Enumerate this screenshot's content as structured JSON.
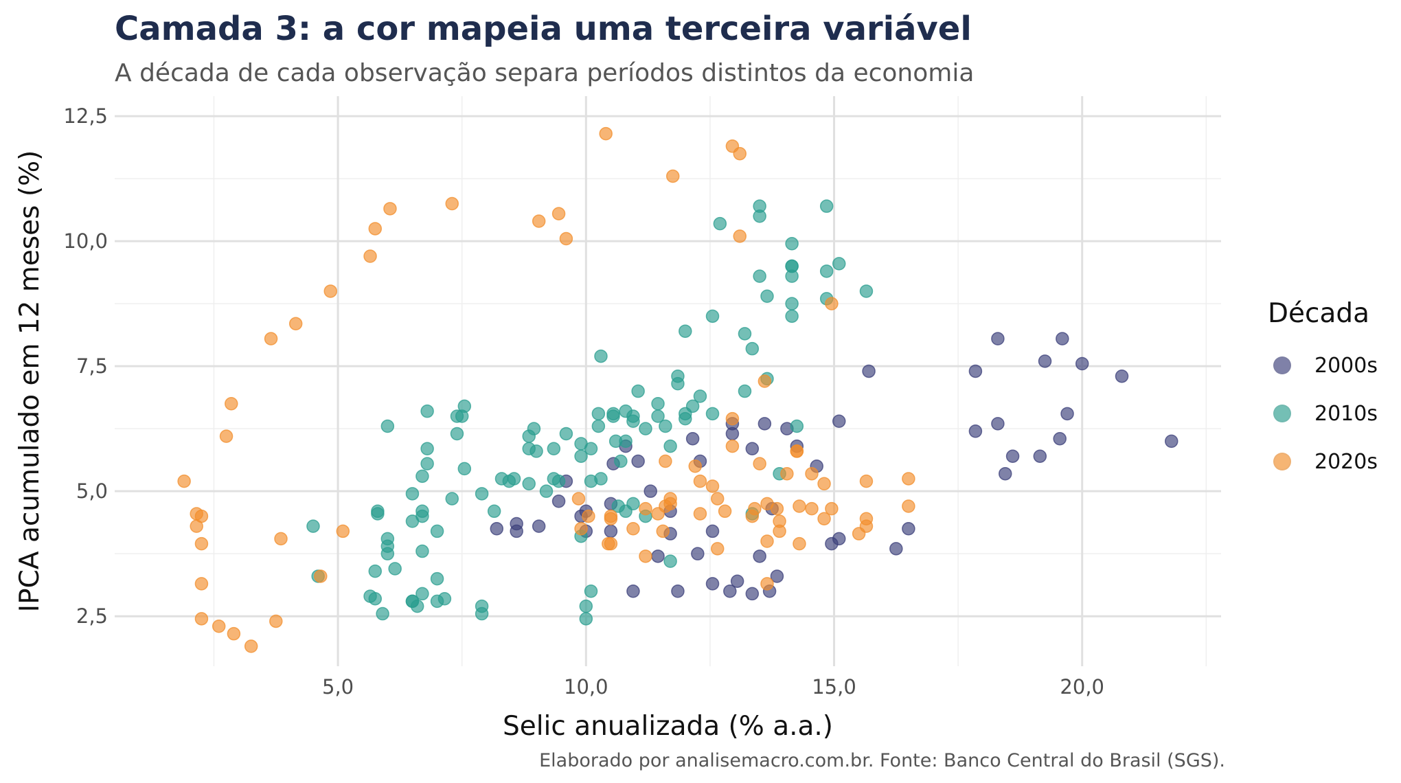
{
  "title": "Camada 3: a cor mapeia uma terceira variável",
  "subtitle": "A década de cada observação separa períodos distintos da economia",
  "caption": "Elaborado por analisemacro.com.br. Fonte: Banco Central do Brasil (SGS).",
  "chart_data": {
    "type": "scatter",
    "xlabel": "Selic anualizada (% a.a.)",
    "ylabel": "IPCA acumulado em 12 meses (%)",
    "xlim": [
      0.5,
      22.8
    ],
    "ylim": [
      1.5,
      12.9
    ],
    "x_ticks": [
      5,
      10,
      15,
      20
    ],
    "x_tick_labels": [
      "5,0",
      "10,0",
      "15,0",
      "20,0"
    ],
    "y_ticks": [
      2.5,
      5,
      7.5,
      10,
      12.5
    ],
    "y_tick_labels": [
      "2,5",
      "5,0",
      "7,5",
      "10,0",
      "12,5"
    ],
    "grid": true,
    "legend": {
      "title": "Década",
      "placement": "right"
    },
    "series": [
      {
        "name": "2000s",
        "color": "#3b3f7a",
        "points": [
          [
            21.8,
            6.0
          ],
          [
            20.8,
            7.3
          ],
          [
            20.0,
            7.55
          ],
          [
            19.7,
            6.55
          ],
          [
            19.6,
            8.05
          ],
          [
            19.55,
            6.05
          ],
          [
            19.25,
            7.6
          ],
          [
            19.15,
            5.7
          ],
          [
            18.6,
            5.7
          ],
          [
            18.45,
            5.35
          ],
          [
            18.3,
            8.05
          ],
          [
            18.3,
            6.35
          ],
          [
            17.85,
            7.4
          ],
          [
            17.85,
            6.2
          ],
          [
            16.5,
            4.25
          ],
          [
            16.25,
            3.85
          ],
          [
            15.7,
            7.4
          ],
          [
            15.1,
            6.4
          ],
          [
            15.1,
            4.05
          ],
          [
            14.95,
            3.95
          ],
          [
            14.65,
            5.5
          ],
          [
            14.25,
            5.9
          ],
          [
            14.05,
            6.25
          ],
          [
            13.85,
            3.3
          ],
          [
            13.75,
            4.65
          ],
          [
            13.7,
            3.0
          ],
          [
            13.6,
            6.35
          ],
          [
            13.5,
            3.7
          ],
          [
            13.35,
            5.85
          ],
          [
            13.35,
            2.95
          ],
          [
            13.05,
            3.2
          ],
          [
            12.95,
            6.15
          ],
          [
            12.95,
            6.35
          ],
          [
            12.9,
            3.0
          ],
          [
            12.55,
            3.15
          ],
          [
            12.55,
            4.2
          ],
          [
            12.3,
            5.6
          ],
          [
            12.25,
            3.75
          ],
          [
            12.15,
            6.05
          ],
          [
            11.85,
            3.0
          ],
          [
            11.7,
            4.6
          ],
          [
            11.7,
            4.15
          ],
          [
            11.45,
            3.7
          ],
          [
            11.3,
            5.0
          ],
          [
            11.05,
            5.6
          ],
          [
            10.95,
            3.0
          ],
          [
            10.8,
            5.9
          ],
          [
            10.55,
            5.55
          ],
          [
            10.5,
            4.75
          ],
          [
            10.5,
            4.2
          ],
          [
            10.0,
            4.2
          ],
          [
            10.0,
            4.6
          ],
          [
            9.9,
            4.5
          ],
          [
            9.6,
            5.2
          ],
          [
            9.45,
            4.8
          ],
          [
            9.05,
            4.3
          ],
          [
            8.6,
            4.35
          ],
          [
            8.6,
            4.2
          ],
          [
            8.2,
            4.25
          ]
        ]
      },
      {
        "name": "2010s",
        "color": "#2a9d8f",
        "points": [
          [
            4.5,
            4.3
          ],
          [
            4.6,
            3.3
          ],
          [
            5.65,
            2.9
          ],
          [
            5.75,
            2.85
          ],
          [
            5.75,
            3.4
          ],
          [
            5.8,
            4.55
          ],
          [
            5.8,
            4.6
          ],
          [
            5.9,
            2.55
          ],
          [
            6.0,
            3.75
          ],
          [
            6.0,
            3.9
          ],
          [
            6.0,
            4.05
          ],
          [
            6.0,
            6.3
          ],
          [
            6.15,
            3.45
          ],
          [
            6.5,
            4.95
          ],
          [
            6.5,
            4.4
          ],
          [
            6.5,
            2.8
          ],
          [
            6.5,
            2.8
          ],
          [
            6.6,
            2.7
          ],
          [
            6.7,
            3.8
          ],
          [
            6.7,
            4.5
          ],
          [
            6.7,
            4.6
          ],
          [
            6.7,
            5.3
          ],
          [
            6.7,
            2.95
          ],
          [
            6.8,
            5.55
          ],
          [
            6.8,
            5.85
          ],
          [
            6.8,
            6.6
          ],
          [
            7.0,
            3.25
          ],
          [
            7.0,
            2.8
          ],
          [
            7.0,
            4.2
          ],
          [
            7.15,
            2.85
          ],
          [
            7.3,
            4.85
          ],
          [
            7.4,
            6.15
          ],
          [
            7.4,
            6.5
          ],
          [
            7.5,
            6.5
          ],
          [
            7.55,
            5.45
          ],
          [
            7.55,
            6.7
          ],
          [
            7.9,
            2.55
          ],
          [
            7.9,
            2.7
          ],
          [
            7.9,
            4.95
          ],
          [
            8.15,
            4.6
          ],
          [
            8.3,
            5.25
          ],
          [
            8.45,
            5.2
          ],
          [
            8.55,
            5.25
          ],
          [
            8.85,
            6.1
          ],
          [
            8.85,
            5.15
          ],
          [
            8.85,
            5.85
          ],
          [
            8.95,
            6.25
          ],
          [
            9.0,
            5.8
          ],
          [
            9.2,
            5.0
          ],
          [
            9.35,
            5.85
          ],
          [
            9.35,
            5.25
          ],
          [
            9.45,
            5.2
          ],
          [
            9.6,
            6.15
          ],
          [
            9.9,
            5.95
          ],
          [
            9.9,
            5.7
          ],
          [
            9.9,
            4.1
          ],
          [
            10.0,
            2.45
          ],
          [
            10.0,
            2.7
          ],
          [
            10.1,
            3.0
          ],
          [
            10.1,
            5.85
          ],
          [
            10.1,
            5.2
          ],
          [
            10.25,
            6.3
          ],
          [
            10.25,
            6.55
          ],
          [
            10.3,
            7.7
          ],
          [
            10.3,
            5.25
          ],
          [
            10.55,
            6.55
          ],
          [
            10.55,
            6.5
          ],
          [
            10.6,
            6.0
          ],
          [
            10.65,
            4.7
          ],
          [
            10.7,
            5.6
          ],
          [
            10.8,
            6.6
          ],
          [
            10.8,
            6.0
          ],
          [
            10.8,
            4.6
          ],
          [
            10.95,
            6.4
          ],
          [
            10.95,
            6.5
          ],
          [
            10.95,
            4.75
          ],
          [
            11.05,
            7.0
          ],
          [
            11.2,
            4.5
          ],
          [
            11.2,
            6.25
          ],
          [
            11.45,
            6.75
          ],
          [
            11.45,
            6.5
          ],
          [
            11.6,
            6.3
          ],
          [
            11.7,
            5.9
          ],
          [
            11.7,
            3.6
          ],
          [
            11.85,
            7.15
          ],
          [
            11.85,
            7.3
          ],
          [
            12.0,
            6.55
          ],
          [
            12.0,
            6.45
          ],
          [
            12.0,
            8.2
          ],
          [
            12.15,
            6.7
          ],
          [
            12.3,
            6.9
          ],
          [
            12.55,
            6.55
          ],
          [
            12.55,
            8.5
          ],
          [
            12.7,
            10.35
          ],
          [
            13.2,
            8.15
          ],
          [
            13.2,
            7.0
          ],
          [
            13.35,
            7.85
          ],
          [
            13.35,
            4.55
          ],
          [
            13.5,
            9.3
          ],
          [
            13.5,
            10.5
          ],
          [
            13.5,
            10.7
          ],
          [
            13.65,
            7.25
          ],
          [
            13.65,
            8.9
          ],
          [
            13.9,
            5.35
          ],
          [
            14.15,
            9.95
          ],
          [
            14.15,
            9.5
          ],
          [
            14.15,
            9.5
          ],
          [
            14.15,
            8.5
          ],
          [
            14.15,
            9.3
          ],
          [
            14.15,
            8.75
          ],
          [
            14.25,
            6.3
          ],
          [
            14.85,
            10.7
          ],
          [
            14.85,
            9.4
          ],
          [
            14.85,
            8.85
          ],
          [
            15.1,
            9.55
          ],
          [
            15.65,
            9.0
          ]
        ]
      },
      {
        "name": "2020s",
        "color": "#f28e2b",
        "points": [
          [
            1.9,
            5.2
          ],
          [
            2.15,
            4.55
          ],
          [
            2.15,
            4.3
          ],
          [
            2.25,
            4.5
          ],
          [
            2.25,
            3.95
          ],
          [
            2.25,
            3.15
          ],
          [
            2.25,
            2.45
          ],
          [
            2.6,
            2.3
          ],
          [
            2.75,
            6.1
          ],
          [
            2.85,
            6.75
          ],
          [
            2.9,
            2.15
          ],
          [
            3.25,
            1.9
          ],
          [
            3.65,
            8.05
          ],
          [
            3.75,
            2.4
          ],
          [
            3.85,
            4.05
          ],
          [
            4.15,
            8.35
          ],
          [
            4.65,
            3.3
          ],
          [
            4.85,
            9.0
          ],
          [
            5.1,
            4.2
          ],
          [
            5.65,
            9.7
          ],
          [
            5.75,
            10.25
          ],
          [
            6.05,
            10.65
          ],
          [
            7.3,
            10.75
          ],
          [
            9.05,
            10.4
          ],
          [
            9.45,
            10.55
          ],
          [
            9.6,
            10.05
          ],
          [
            9.85,
            4.85
          ],
          [
            9.9,
            4.25
          ],
          [
            10.05,
            4.5
          ],
          [
            10.4,
            12.15
          ],
          [
            10.45,
            3.95
          ],
          [
            10.5,
            4.45
          ],
          [
            10.5,
            3.95
          ],
          [
            10.5,
            4.5
          ],
          [
            10.95,
            4.25
          ],
          [
            11.2,
            3.7
          ],
          [
            11.2,
            4.65
          ],
          [
            11.45,
            4.55
          ],
          [
            11.55,
            4.2
          ],
          [
            11.6,
            5.6
          ],
          [
            11.6,
            4.7
          ],
          [
            11.7,
            4.85
          ],
          [
            11.7,
            4.75
          ],
          [
            11.75,
            11.3
          ],
          [
            12.2,
            5.5
          ],
          [
            12.3,
            5.2
          ],
          [
            12.3,
            4.55
          ],
          [
            12.55,
            5.1
          ],
          [
            12.65,
            4.85
          ],
          [
            12.65,
            3.85
          ],
          [
            12.8,
            4.6
          ],
          [
            12.95,
            5.9
          ],
          [
            12.95,
            6.45
          ],
          [
            12.95,
            11.9
          ],
          [
            13.1,
            10.1
          ],
          [
            13.1,
            11.75
          ],
          [
            13.35,
            4.5
          ],
          [
            13.4,
            4.65
          ],
          [
            13.5,
            5.55
          ],
          [
            13.6,
            7.2
          ],
          [
            13.65,
            4.75
          ],
          [
            13.65,
            4.0
          ],
          [
            13.65,
            3.15
          ],
          [
            13.85,
            4.65
          ],
          [
            13.9,
            4.2
          ],
          [
            13.9,
            4.4
          ],
          [
            14.05,
            5.35
          ],
          [
            14.25,
            5.8
          ],
          [
            14.25,
            5.8
          ],
          [
            14.3,
            4.7
          ],
          [
            14.3,
            3.95
          ],
          [
            14.55,
            4.65
          ],
          [
            14.55,
            5.35
          ],
          [
            14.8,
            5.15
          ],
          [
            14.8,
            4.45
          ],
          [
            14.95,
            4.65
          ],
          [
            14.95,
            8.75
          ],
          [
            15.5,
            4.15
          ],
          [
            15.65,
            5.2
          ],
          [
            15.65,
            4.3
          ],
          [
            15.65,
            4.45
          ],
          [
            16.5,
            5.25
          ],
          [
            16.5,
            4.7
          ]
        ]
      }
    ]
  }
}
